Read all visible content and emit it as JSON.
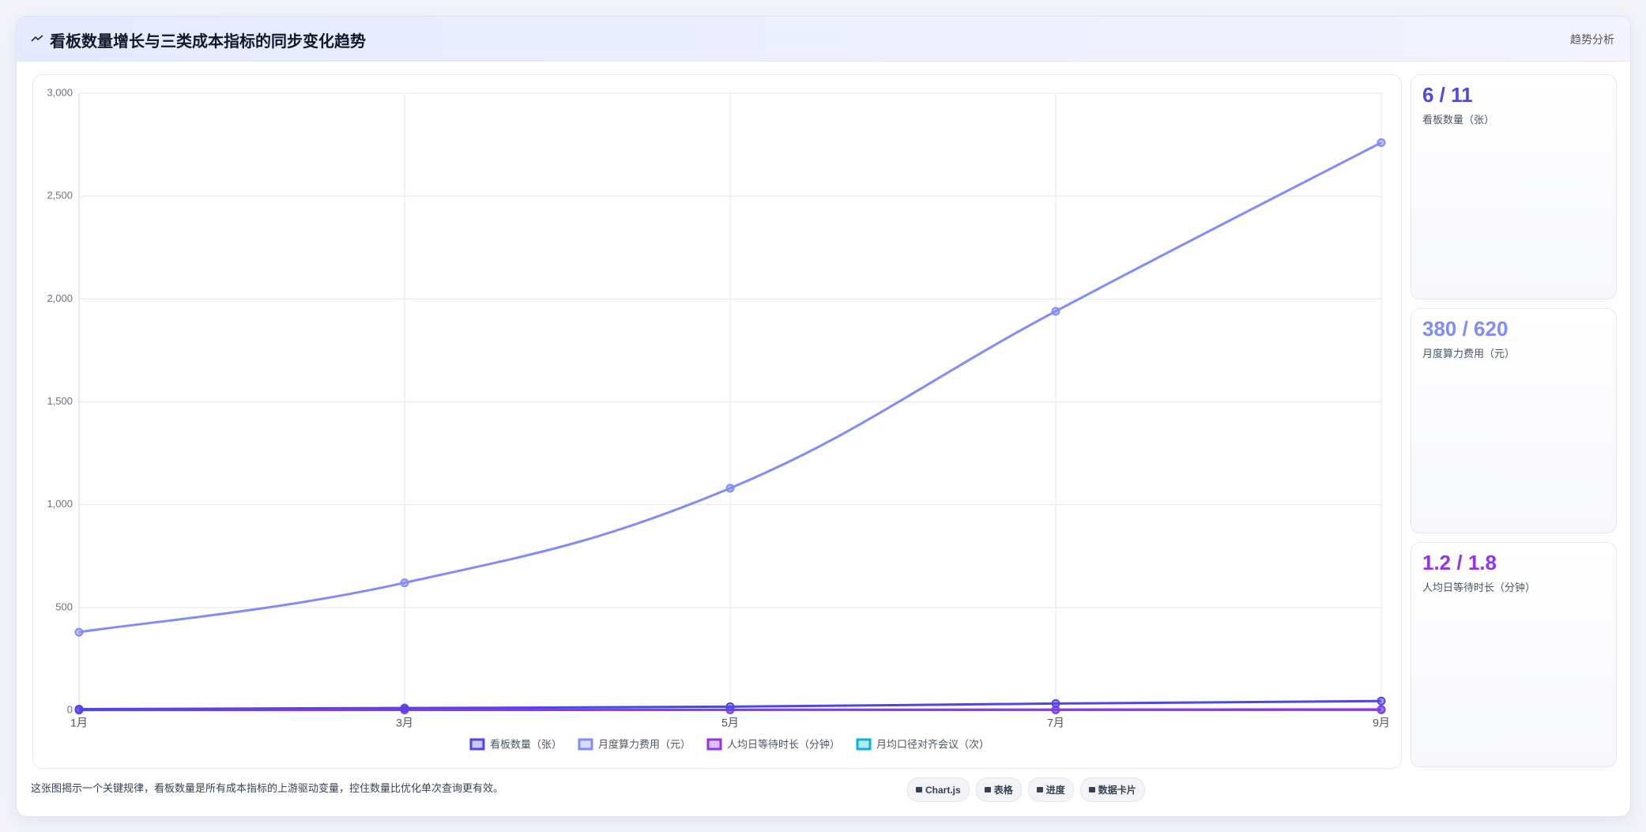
{
  "header": {
    "title": "看板数量增长与三类成本指标的同步变化趋势",
    "tag": "趋势分析"
  },
  "chart_data": {
    "type": "line",
    "categories": [
      "1月",
      "3月",
      "5月",
      "7月",
      "9月"
    ],
    "series": [
      {
        "name": "看板数量（张）",
        "color": "#4f46e5",
        "values": [
          6,
          11,
          18,
          33,
          45
        ]
      },
      {
        "name": "月度算力费用（元）",
        "color": "#818cf8",
        "values": [
          380,
          620,
          1080,
          1940,
          2760
        ]
      },
      {
        "name": "人均日等待时长（分钟）",
        "color": "#9333ea",
        "values": [
          1.2,
          1.8,
          2.5,
          3.5,
          4.5
        ]
      },
      {
        "name": "月均口径对齐会议（次）",
        "color": "#06b6d4",
        "values": [
          4,
          3,
          3,
          2,
          2
        ]
      }
    ],
    "ylim": [
      0,
      3000
    ],
    "yticks": [
      0,
      500,
      {
        "value": 1000,
        "label": "1,000"
      },
      {
        "value": 1500,
        "label": "1,500"
      },
      {
        "value": 2000,
        "label": "2,000"
      },
      {
        "value": 2500,
        "label": "2,500"
      },
      {
        "value": 3000,
        "label": "3,000"
      }
    ],
    "grid": true
  },
  "cards": [
    {
      "value": "6 / 11",
      "label": "看板数量（张）"
    },
    {
      "value": "380 / 620",
      "label": "月度算力费用（元）"
    },
    {
      "value": "1.2 / 1.8",
      "label": "人均日等待时长（分钟）"
    }
  ],
  "footer": {
    "note": "这张图揭示一个关键规律，看板数量是所有成本指标的上游驱动变量，控住数量比优化单次查询更有效。",
    "buttons": [
      "Chart.js",
      "表格",
      "进度",
      "数据卡片"
    ]
  }
}
